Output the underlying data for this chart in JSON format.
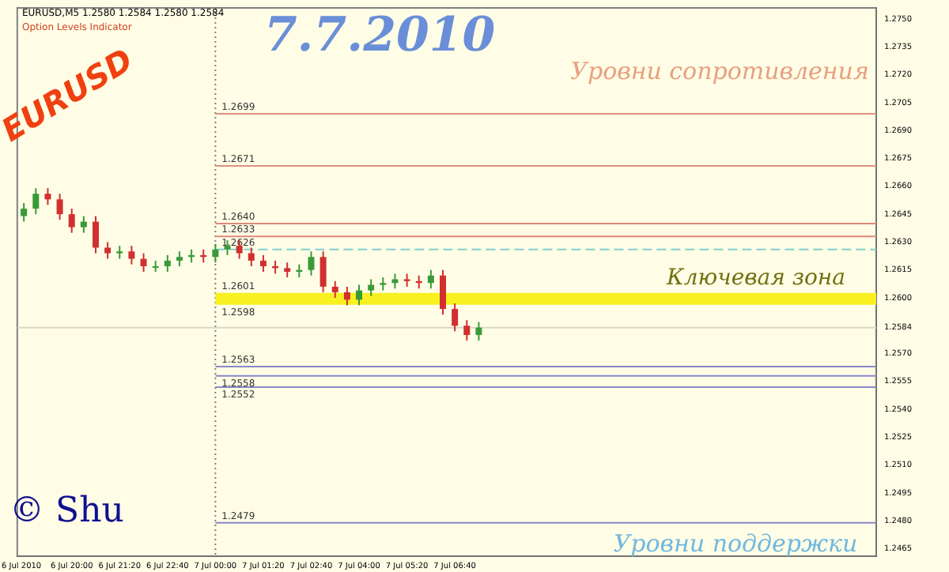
{
  "chart_data": {
    "type": "candlestick",
    "title": "7.7.2010",
    "x": [
      "2010-07-06T18:40",
      "2010-07-06T19:00",
      "2010-07-06T19:20",
      "2010-07-06T19:40",
      "2010-07-06T20:00",
      "2010-07-06T20:20",
      "2010-07-06T20:40",
      "2010-07-06T21:00",
      "2010-07-06T21:20",
      "2010-07-06T21:40",
      "2010-07-06T22:00",
      "2010-07-06T22:20",
      "2010-07-06T22:40",
      "2010-07-06T23:00",
      "2010-07-06T23:20",
      "2010-07-06T23:40",
      "2010-07-07T00:00",
      "2010-07-07T00:20",
      "2010-07-07T00:40",
      "2010-07-07T01:00",
      "2010-07-07T01:20",
      "2010-07-07T01:40",
      "2010-07-07T02:00",
      "2010-07-07T02:20",
      "2010-07-07T02:40",
      "2010-07-07T03:00",
      "2010-07-07T03:20",
      "2010-07-07T03:40",
      "2010-07-07T04:00",
      "2010-07-07T04:20",
      "2010-07-07T04:40",
      "2010-07-07T05:00",
      "2010-07-07T05:20",
      "2010-07-07T05:40",
      "2010-07-07T06:00",
      "2010-07-07T06:20",
      "2010-07-07T06:40",
      "2010-07-07T07:00",
      "2010-07-07T07:20"
    ],
    "ohlc": [
      [
        1.2644,
        1.2651,
        1.2641,
        1.2648
      ],
      [
        1.2648,
        1.2659,
        1.2645,
        1.2656
      ],
      [
        1.2656,
        1.2659,
        1.265,
        1.2653
      ],
      [
        1.2653,
        1.2656,
        1.2642,
        1.2645
      ],
      [
        1.2645,
        1.2648,
        1.2635,
        1.2638
      ],
      [
        1.2638,
        1.2644,
        1.2635,
        1.2641
      ],
      [
        1.2641,
        1.2644,
        1.2624,
        1.2627
      ],
      [
        1.2627,
        1.263,
        1.2621,
        1.2624
      ],
      [
        1.2624,
        1.2628,
        1.2621,
        1.2625
      ],
      [
        1.2625,
        1.2628,
        1.2618,
        1.2621
      ],
      [
        1.2621,
        1.2624,
        1.2614,
        1.2617
      ],
      [
        1.2617,
        1.262,
        1.2614,
        1.2617
      ],
      [
        1.2617,
        1.2623,
        1.2614,
        1.262
      ],
      [
        1.262,
        1.2625,
        1.2617,
        1.2622
      ],
      [
        1.2622,
        1.2626,
        1.2619,
        1.2623
      ],
      [
        1.2623,
        1.2626,
        1.2619,
        1.2622
      ],
      [
        1.2622,
        1.2629,
        1.2619,
        1.2626
      ],
      [
        1.2626,
        1.2631,
        1.2623,
        1.2628
      ],
      [
        1.2628,
        1.2631,
        1.2621,
        1.2624
      ],
      [
        1.2624,
        1.2627,
        1.2617,
        1.262
      ],
      [
        1.262,
        1.2623,
        1.2614,
        1.2617
      ],
      [
        1.2617,
        1.262,
        1.2613,
        1.2616
      ],
      [
        1.2616,
        1.2619,
        1.2611,
        1.2614
      ],
      [
        1.2614,
        1.2618,
        1.2611,
        1.2615
      ],
      [
        1.2615,
        1.2625,
        1.2612,
        1.2622
      ],
      [
        1.2622,
        1.2625,
        1.2603,
        1.2606
      ],
      [
        1.2606,
        1.2609,
        1.26,
        1.2603
      ],
      [
        1.2603,
        1.2606,
        1.2596,
        1.2599
      ],
      [
        1.2599,
        1.2607,
        1.2596,
        1.2604
      ],
      [
        1.2604,
        1.261,
        1.2601,
        1.2607
      ],
      [
        1.2607,
        1.2611,
        1.2604,
        1.2608
      ],
      [
        1.2608,
        1.2613,
        1.2605,
        1.261
      ],
      [
        1.261,
        1.2613,
        1.2606,
        1.2609
      ],
      [
        1.2609,
        1.2612,
        1.2605,
        1.2608
      ],
      [
        1.2608,
        1.2615,
        1.2605,
        1.2612
      ],
      [
        1.2612,
        1.2615,
        1.2591,
        1.2594
      ],
      [
        1.2594,
        1.2597,
        1.2582,
        1.2585
      ],
      [
        1.2585,
        1.2588,
        1.2577,
        1.258
      ],
      [
        1.258,
        1.2587,
        1.2577,
        1.2584
      ]
    ],
    "colors": [
      "#3a9a3a",
      "#3a9a3a",
      "#d03030",
      "#d03030",
      "#d03030",
      "#3a9a3a",
      "#d03030",
      "#d03030",
      "#3a9a3a",
      "#d03030",
      "#d03030",
      "#3a9a3a",
      "#3a9a3a",
      "#3a9a3a",
      "#3a9a3a",
      "#d03030",
      "#3a9a3a",
      "#3a9a3a",
      "#d03030",
      "#d03030",
      "#d03030",
      "#d03030",
      "#d03030",
      "#3a9a3a",
      "#3a9a3a",
      "#d03030",
      "#d03030",
      "#d03030",
      "#3a9a3a",
      "#3a9a3a",
      "#3a9a3a",
      "#3a9a3a",
      "#d03030",
      "#d03030",
      "#3a9a3a",
      "#d03030",
      "#d03030",
      "#d03030",
      "#3a9a3a"
    ],
    "xlim": [
      "2010-07-06T18:29",
      "2010-07-07T18:24"
    ],
    "xticks": [
      {
        "value": "2010-07-06T18:36",
        "label": "6 Jul 2010"
      },
      {
        "value": "2010-07-06T20:00",
        "label": "6 Jul 20:00"
      },
      {
        "value": "2010-07-06T21:20",
        "label": "6 Jul 21:20"
      },
      {
        "value": "2010-07-06T22:40",
        "label": "6 Jul 22:40"
      },
      {
        "value": "2010-07-07T00:00",
        "label": "7 Jul 00:00"
      },
      {
        "value": "2010-07-07T01:20",
        "label": "7 Jul 01:20"
      },
      {
        "value": "2010-07-07T02:40",
        "label": "7 Jul 02:40"
      },
      {
        "value": "2010-07-07T04:00",
        "label": "7 Jul 04:00"
      },
      {
        "value": "2010-07-07T05:20",
        "label": "7 Jul 05:20"
      },
      {
        "value": "2010-07-07T06:40",
        "label": "7 Jul 06:40"
      }
    ],
    "ylim": [
      1.2461,
      1.2756
    ],
    "yticks": [
      {
        "value": 1.2465,
        "label": "1.2465"
      },
      {
        "value": 1.248,
        "label": "1.2480"
      },
      {
        "value": 1.2495,
        "label": "1.2495"
      },
      {
        "value": 1.251,
        "label": "1.2510"
      },
      {
        "value": 1.2525,
        "label": "1.2525"
      },
      {
        "value": 1.254,
        "label": "1.2540"
      },
      {
        "value": 1.2555,
        "label": "1.2555"
      },
      {
        "value": 1.257,
        "label": "1.2570"
      },
      {
        "value": 1.2584,
        "label": "1.2584"
      },
      {
        "value": 1.26,
        "label": "1.2600"
      },
      {
        "value": 1.2615,
        "label": "1.2615"
      },
      {
        "value": 1.263,
        "label": "1.2630"
      },
      {
        "value": 1.2645,
        "label": "1.2645"
      },
      {
        "value": 1.266,
        "label": "1.2660"
      },
      {
        "value": 1.2675,
        "label": "1.2675"
      },
      {
        "value": 1.269,
        "label": "1.2690"
      },
      {
        "value": 1.2705,
        "label": "1.2705"
      },
      {
        "value": 1.272,
        "label": "1.2720"
      },
      {
        "value": 1.2735,
        "label": "1.2735"
      },
      {
        "value": 1.275,
        "label": "1.2750"
      }
    ],
    "ref_lines": [
      {
        "axis": "x",
        "value": "2010-07-07T00:00",
        "label": null,
        "color": "#808080",
        "line_style": "dotted"
      },
      {
        "axis": "y",
        "value": 1.2584,
        "label": null,
        "color": "#d8d8c8",
        "line_style": "solid"
      },
      {
        "axis": "y",
        "value": 1.2699,
        "label": "1.2699",
        "color": "#e09080",
        "line_style": "solid"
      },
      {
        "axis": "y",
        "value": 1.2671,
        "label": "1.2671",
        "color": "#e09080",
        "line_style": "solid"
      },
      {
        "axis": "y",
        "value": 1.264,
        "label": "1.2640",
        "color": "#e08878",
        "line_style": "solid"
      },
      {
        "axis": "y",
        "value": 1.2633,
        "label": "1.2633",
        "color": "#e08878",
        "line_style": "solid"
      },
      {
        "axis": "y",
        "value": 1.2626,
        "label": "1.2626",
        "color": "#80d0d0",
        "line_style": "dashed"
      },
      {
        "axis": "y",
        "value": 1.2601,
        "label": "1.2601",
        "color": "#f8f020",
        "line_style": "solid"
      },
      {
        "axis": "y",
        "value": 1.2598,
        "label": "1.2598",
        "color": "#f8f020",
        "line_style": "solid"
      },
      {
        "axis": "y",
        "value": 1.2563,
        "label": "1.2563",
        "color": "#8888c8",
        "line_style": "solid"
      },
      {
        "axis": "y",
        "value": 1.2558,
        "label": "1.2558",
        "color": "#8888c8",
        "line_style": "solid"
      },
      {
        "axis": "y",
        "value": 1.2552,
        "label": "1.2552",
        "color": "#8888c8",
        "line_style": "solid"
      },
      {
        "axis": "y",
        "value": 1.2479,
        "label": "1.2479",
        "color": "#8888c8",
        "line_style": "solid"
      }
    ],
    "annotations": [
      "EURUSD,M5 1.2580 1.2584 1.2580 1.2584",
      "Option Levels Indicator",
      "EURUSD",
      "Уровни сопротивления",
      "Ключевая зона",
      "Уровни поддержки",
      "© Shu"
    ],
    "grid": false,
    "legend": false
  }
}
